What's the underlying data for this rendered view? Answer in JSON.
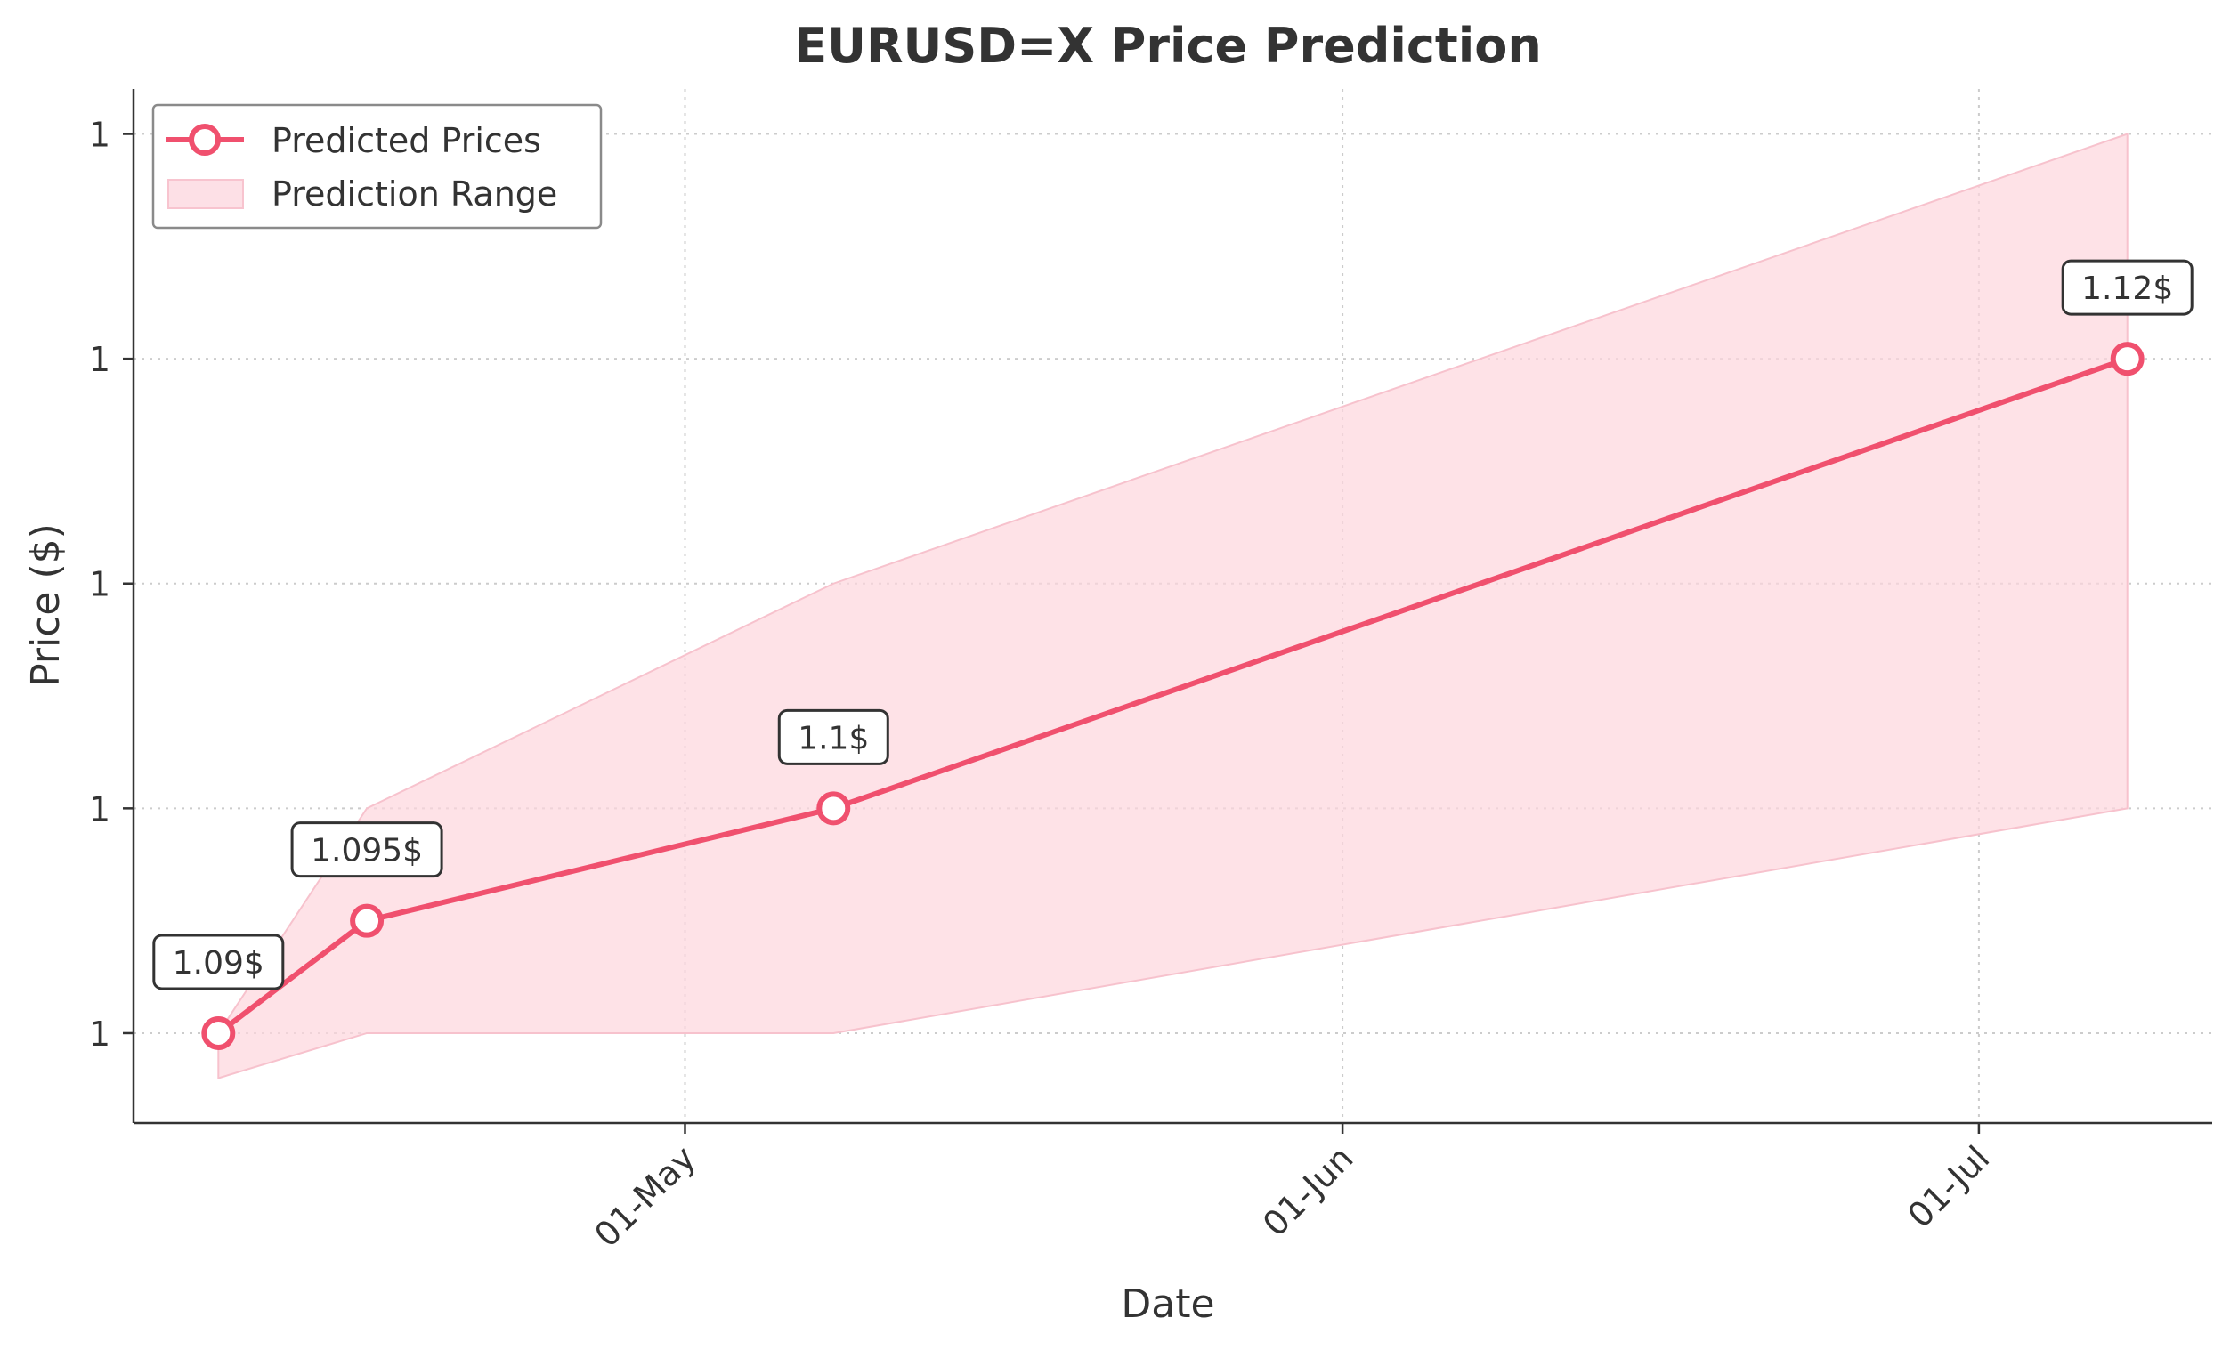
{
  "chart_data": {
    "type": "line",
    "title": "EURUSD=X Price Prediction",
    "xlabel": "Date",
    "ylabel": "Price ($)",
    "x_ticks": [
      {
        "label": "01-May",
        "date": "2024-05-01"
      },
      {
        "label": "01-Jun",
        "date": "2024-06-01"
      },
      {
        "label": "01-Jul",
        "date": "2024-07-01"
      }
    ],
    "y_ticks": [
      {
        "label": "1",
        "value": 1.09
      },
      {
        "label": "1",
        "value": 1.1
      },
      {
        "label": "1",
        "value": 1.11
      },
      {
        "label": "1",
        "value": 1.12
      },
      {
        "label": "1",
        "value": 1.13
      }
    ],
    "xlim": [
      "2024-04-05",
      "2024-07-12"
    ],
    "ylim": [
      1.086,
      1.132
    ],
    "series": [
      {
        "name": "Predicted Prices",
        "color": "#f0506e",
        "points": [
          {
            "x": "2024-04-09",
            "y": 1.09,
            "label": "1.09$"
          },
          {
            "x": "2024-04-16",
            "y": 1.095,
            "label": "1.095$"
          },
          {
            "x": "2024-05-08",
            "y": 1.1,
            "label": "1.1$"
          },
          {
            "x": "2024-07-08",
            "y": 1.12,
            "label": "1.12$"
          }
        ]
      }
    ],
    "band": {
      "name": "Prediction Range",
      "color": "#fdd5dd",
      "points": [
        {
          "x": "2024-04-09",
          "low": 1.088,
          "high": 1.09
        },
        {
          "x": "2024-04-16",
          "low": 1.09,
          "high": 1.1
        },
        {
          "x": "2024-05-08",
          "low": 1.09,
          "high": 1.11
        },
        {
          "x": "2024-07-08",
          "low": 1.1,
          "high": 1.13
        }
      ]
    },
    "legend_position": "top-left",
    "grid": true
  }
}
